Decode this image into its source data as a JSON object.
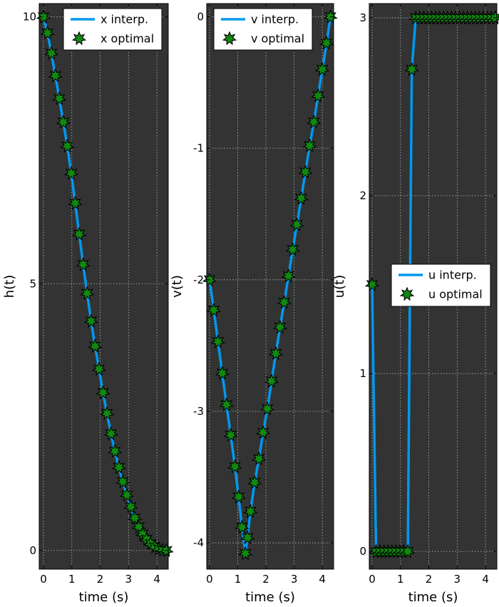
{
  "chart_data": [
    {
      "type": "line",
      "xlabel": "time (s)",
      "ylabel": "h(t)",
      "xlim": [
        -0.15,
        4.4
      ],
      "ylim": [
        -0.35,
        10.25
      ],
      "xticks": [
        0,
        1,
        2,
        3,
        4
      ],
      "yticks": [
        0,
        5,
        10
      ],
      "grid": true,
      "legend_position": "top-right",
      "series": [
        {
          "name": "x interp.",
          "style": "line",
          "color": "#0099ee",
          "x": [
            0.0,
            0.14,
            0.28,
            0.42,
            0.56,
            0.7,
            0.84,
            0.98,
            1.12,
            1.26,
            1.4,
            1.54,
            1.68,
            1.82,
            1.96,
            2.1,
            2.24,
            2.38,
            2.52,
            2.66,
            2.8,
            2.94,
            3.08,
            3.22,
            3.36,
            3.5,
            3.64,
            3.78,
            3.92,
            4.06,
            4.2,
            4.34
          ],
          "y": [
            10.0,
            9.7,
            9.32,
            8.9,
            8.47,
            8.03,
            7.58,
            7.07,
            6.51,
            5.93,
            5.36,
            4.82,
            4.3,
            3.83,
            3.4,
            2.96,
            2.57,
            2.19,
            1.86,
            1.56,
            1.29,
            1.04,
            0.82,
            0.61,
            0.44,
            0.31,
            0.21,
            0.13,
            0.07,
            0.03,
            0.01,
            0.0
          ]
        },
        {
          "name": "x optimal",
          "style": "markers",
          "color": "#118811",
          "x": [
            0.0,
            0.14,
            0.28,
            0.42,
            0.56,
            0.7,
            0.84,
            0.98,
            1.12,
            1.26,
            1.4,
            1.54,
            1.68,
            1.82,
            1.96,
            2.1,
            2.24,
            2.38,
            2.52,
            2.66,
            2.8,
            2.94,
            3.08,
            3.22,
            3.36,
            3.5,
            3.64,
            3.78,
            3.92,
            4.06,
            4.2,
            4.34
          ],
          "y": [
            10.0,
            9.7,
            9.32,
            8.9,
            8.47,
            8.03,
            7.58,
            7.07,
            6.51,
            5.93,
            5.36,
            4.82,
            4.3,
            3.83,
            3.4,
            2.96,
            2.57,
            2.19,
            1.86,
            1.56,
            1.29,
            1.04,
            0.82,
            0.61,
            0.44,
            0.31,
            0.21,
            0.13,
            0.07,
            0.03,
            0.01,
            0.0
          ]
        }
      ]
    },
    {
      "type": "line",
      "xlabel": "time (s)",
      "ylabel": "v(t)",
      "xlim": [
        -0.1,
        4.4
      ],
      "ylim": [
        -4.2,
        0.1
      ],
      "xticks": [
        0,
        1,
        2,
        3,
        4
      ],
      "yticks": [
        0,
        -1,
        -2,
        -3,
        -4
      ],
      "grid": true,
      "legend_position": "top-left",
      "series": [
        {
          "name": "v interp.",
          "style": "line",
          "color": "#0099ee",
          "x": [
            0.0,
            0.15,
            0.3,
            0.45,
            0.6,
            0.75,
            0.9,
            1.03,
            1.15,
            1.21,
            1.27,
            1.35,
            1.45,
            1.6,
            1.75,
            1.9,
            2.05,
            2.2,
            2.35,
            2.5,
            2.65,
            2.8,
            2.95,
            3.1,
            3.25,
            3.4,
            3.55,
            3.7,
            3.85,
            4.0,
            4.15,
            4.29
          ],
          "y": [
            -2.0,
            -2.23,
            -2.47,
            -2.71,
            -2.95,
            -3.18,
            -3.42,
            -3.65,
            -3.88,
            -3.98,
            -4.08,
            -3.96,
            -3.76,
            -3.54,
            -3.36,
            -3.16,
            -2.98,
            -2.77,
            -2.56,
            -2.36,
            -2.17,
            -1.97,
            -1.77,
            -1.58,
            -1.38,
            -1.18,
            -0.98,
            -0.8,
            -0.6,
            -0.4,
            -0.2,
            0.0
          ]
        },
        {
          "name": "v optimal",
          "style": "markers",
          "color": "#118811",
          "x": [
            0.0,
            0.15,
            0.3,
            0.45,
            0.6,
            0.75,
            0.9,
            1.03,
            1.15,
            1.27,
            1.35,
            1.45,
            1.6,
            1.75,
            1.9,
            2.05,
            2.2,
            2.35,
            2.5,
            2.65,
            2.8,
            2.95,
            3.1,
            3.25,
            3.4,
            3.55,
            3.7,
            3.85,
            4.0,
            4.15,
            4.29
          ],
          "y": [
            -2.0,
            -2.23,
            -2.47,
            -2.71,
            -2.95,
            -3.18,
            -3.42,
            -3.65,
            -3.88,
            -4.08,
            -3.96,
            -3.76,
            -3.54,
            -3.36,
            -3.16,
            -2.98,
            -2.77,
            -2.56,
            -2.36,
            -2.17,
            -1.97,
            -1.77,
            -1.58,
            -1.38,
            -1.18,
            -0.98,
            -0.8,
            -0.6,
            -0.4,
            -0.2,
            0.0
          ]
        }
      ]
    },
    {
      "type": "line",
      "xlabel": "time (s)",
      "ylabel": "u(t)",
      "xlim": [
        -0.1,
        4.4
      ],
      "ylim": [
        -0.1,
        3.08
      ],
      "xticks": [
        0,
        1,
        2,
        3,
        4
      ],
      "yticks": [
        0,
        1,
        2,
        3
      ],
      "grid": true,
      "legend_position": "center-right",
      "series": [
        {
          "name": "u interp.",
          "style": "line",
          "color": "#0099ee",
          "x": [
            0.0,
            0.14,
            0.28,
            0.42,
            0.56,
            0.7,
            0.84,
            0.98,
            1.12,
            1.26,
            1.4,
            1.54,
            1.68,
            1.82,
            1.96,
            2.1,
            2.24,
            2.38,
            2.52,
            2.66,
            2.8,
            2.94,
            3.08,
            3.22,
            3.36,
            3.5,
            3.64,
            3.78,
            3.92,
            4.06,
            4.2,
            4.34
          ],
          "y": [
            1.5,
            0.0,
            0.0,
            0.0,
            0.0,
            0.0,
            0.0,
            0.0,
            0.0,
            0.0,
            2.71,
            3.0,
            3.0,
            3.0,
            3.0,
            3.0,
            3.0,
            3.0,
            3.0,
            3.0,
            3.0,
            3.0,
            3.0,
            3.0,
            3.0,
            3.0,
            3.0,
            3.0,
            3.0,
            3.0,
            3.0,
            3.0
          ]
        },
        {
          "name": "u optimal",
          "style": "markers",
          "color": "#118811",
          "x": [
            0.0,
            0.14,
            0.28,
            0.42,
            0.56,
            0.7,
            0.84,
            0.98,
            1.12,
            1.26,
            1.4,
            1.54,
            1.68,
            1.82,
            1.96,
            2.1,
            2.24,
            2.38,
            2.52,
            2.66,
            2.8,
            2.94,
            3.08,
            3.22,
            3.36,
            3.5,
            3.64,
            3.78,
            3.92,
            4.06,
            4.2,
            4.34
          ],
          "y": [
            1.5,
            0.0,
            0.0,
            0.0,
            0.0,
            0.0,
            0.0,
            0.0,
            0.0,
            0.0,
            2.71,
            3.0,
            3.0,
            3.0,
            3.0,
            3.0,
            3.0,
            3.0,
            3.0,
            3.0,
            3.0,
            3.0,
            3.0,
            3.0,
            3.0,
            3.0,
            3.0,
            3.0,
            3.0,
            3.0,
            3.0,
            3.0
          ]
        }
      ]
    }
  ]
}
